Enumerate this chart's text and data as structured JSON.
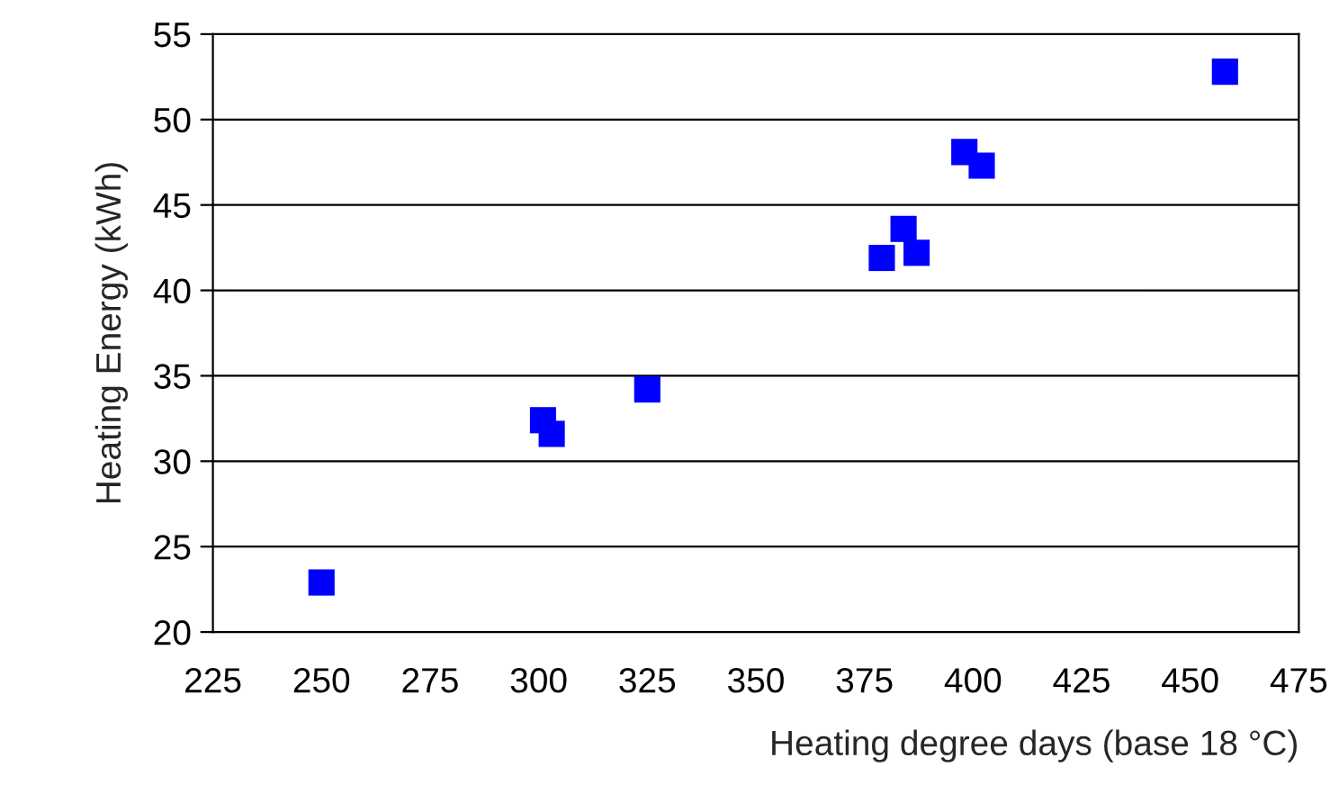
{
  "chart_data": {
    "type": "scatter",
    "xlabel": "Heating degree days (base 18 °C)",
    "ylabel": "Heating Energy (kWh)",
    "x": [
      250,
      301,
      303,
      325,
      379,
      384,
      387,
      398,
      402,
      458
    ],
    "series": [
      {
        "color": "#0000ff",
        "values": [
          22.9,
          32.4,
          31.6,
          34.2,
          41.9,
          43.6,
          42.2,
          48.1,
          47.3,
          52.8
        ]
      }
    ],
    "marker": "square",
    "xlim": [
      225,
      475
    ],
    "xticks": [
      225,
      250,
      275,
      300,
      325,
      350,
      375,
      400,
      425,
      450,
      475
    ],
    "ylim": [
      20,
      55
    ],
    "yticks": [
      20,
      25,
      30,
      35,
      40,
      45,
      50,
      55
    ],
    "grid": "y",
    "legend": false
  }
}
